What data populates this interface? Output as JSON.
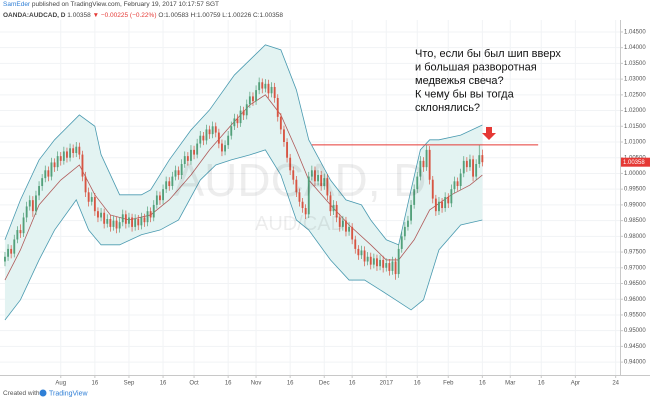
{
  "header": {
    "publisher": "SamEder",
    "published": "published on TradingView.com, February 19, 2017 10:17:57 SGT",
    "symbol": "OANDA:AUDCAD, D",
    "last": "1.00358",
    "change": "▼ −0.00225 (−0.22%)",
    "ohlc": "O:1.00583 H:1.00759 L:1.00226 C:1.00358"
  },
  "footer": {
    "created": "Created with",
    "brand": "TradingView"
  },
  "chart_data": {
    "type": "candlestick",
    "watermark_title": "AUDCAD, D",
    "watermark_subtitle": "AUD/CAD",
    "annotation": [
      "Что, если бы был шип вверх",
      "и большая разворотная",
      "медвежья свеча?",
      "К чему бы вы тогда",
      "склонялись?"
    ],
    "up_color": "#53a07a",
    "down_color": "#d75442",
    "grid": true,
    "xlim": [
      -1.6,
      198.4
    ],
    "ylim": [
      0.9359,
      1.0488
    ],
    "xticks": [
      {
        "value": 18,
        "label": "Aug"
      },
      {
        "value": 29,
        "label": "16"
      },
      {
        "value": 40,
        "label": "Sep"
      },
      {
        "value": 51,
        "label": "16"
      },
      {
        "value": 61,
        "label": "Oct"
      },
      {
        "value": 72,
        "label": "16"
      },
      {
        "value": 81,
        "label": "Nov"
      },
      {
        "value": 92,
        "label": "16"
      },
      {
        "value": 103,
        "label": "Dec"
      },
      {
        "value": 112,
        "label": "16"
      },
      {
        "value": 123,
        "label": "2017"
      },
      {
        "value": 133,
        "label": "16"
      },
      {
        "value": 143,
        "label": "Feb"
      },
      {
        "value": 154,
        "label": "16"
      },
      {
        "value": 163,
        "label": "Mar"
      },
      {
        "value": 173,
        "label": "16"
      },
      {
        "value": 184,
        "label": "Apr"
      },
      {
        "value": 197,
        "label": "24"
      }
    ],
    "yticks": [
      {
        "value": 1.045,
        "label": "1.04500"
      },
      {
        "value": 1.04,
        "label": "1.04000"
      },
      {
        "value": 1.035,
        "label": "1.03500"
      },
      {
        "value": 1.03,
        "label": "1.03000"
      },
      {
        "value": 1.025,
        "label": "1.02500"
      },
      {
        "value": 1.02,
        "label": "1.02000"
      },
      {
        "value": 1.015,
        "label": "1.01500"
      },
      {
        "value": 1.01,
        "label": "1.01000"
      },
      {
        "value": 1.005,
        "label": "1.00500"
      },
      {
        "value": 1,
        "label": "1.00000"
      },
      {
        "value": 0.995,
        "label": "0.99500"
      },
      {
        "value": 0.99,
        "label": "0.99000"
      },
      {
        "value": 0.985,
        "label": "0.98500"
      },
      {
        "value": 0.98,
        "label": "0.98000"
      },
      {
        "value": 0.975,
        "label": "0.97500"
      },
      {
        "value": 0.97,
        "label": "0.97000"
      },
      {
        "value": 0.965,
        "label": "0.96500"
      },
      {
        "value": 0.96,
        "label": "0.96000"
      },
      {
        "value": 0.955,
        "label": "0.95500"
      },
      {
        "value": 0.95,
        "label": "0.95000"
      },
      {
        "value": 0.945,
        "label": "0.94500"
      },
      {
        "value": 0.94,
        "label": "0.94000"
      }
    ],
    "last_price": 1.00358,
    "last_color": "#e53935",
    "hline": {
      "y": 1.0091,
      "x": [
        99,
        172
      ],
      "color": "#e53935"
    },
    "bands": {
      "fill": "#e3f3f2",
      "upper": {
        "color": "#4a9ab0",
        "x": [
          0,
          5,
          11,
          16,
          24,
          29,
          31,
          37,
          44,
          47,
          53,
          60,
          66,
          74,
          79,
          84,
          89,
          94,
          98,
          105,
          110,
          115,
          118,
          123,
          127,
          131,
          134,
          137,
          140,
          147,
          154
        ],
        "values": [
          0.9789,
          0.9916,
          1.0043,
          1.0107,
          1.0186,
          1.015,
          1.006,
          0.9932,
          0.9932,
          0.9948,
          1.0043,
          1.0138,
          1.0202,
          1.0313,
          1.0361,
          1.0409,
          1.0393,
          1.0266,
          1.0107,
          0.9979,
          0.9916,
          0.99,
          0.9852,
          0.9789,
          0.9773,
          0.9948,
          1.0075,
          1.0107,
          1.0107,
          1.0122,
          1.0154
        ]
      },
      "middle": {
        "color": "#b05a5a",
        "x": [
          0,
          5,
          11,
          18,
          24,
          29,
          34,
          40,
          47,
          53,
          60,
          66,
          73,
          79,
          84,
          89,
          94,
          98,
          105,
          111,
          118,
          123,
          127,
          132,
          137,
          144,
          150,
          154
        ],
        "values": [
          0.9661,
          0.9757,
          0.99,
          0.9979,
          1.0027,
          0.9932,
          0.9868,
          0.9852,
          0.9868,
          0.9916,
          0.9995,
          1.0075,
          1.0154,
          1.0218,
          1.025,
          1.0186,
          1.0075,
          0.9979,
          0.99,
          0.9836,
          0.9773,
          0.9725,
          0.9725,
          0.9789,
          0.9884,
          0.9932,
          0.9963,
          0.9995
        ]
      },
      "lower": {
        "color": "#4a9ab0",
        "x": [
          0,
          5,
          11,
          16,
          23,
          27,
          31,
          37,
          44,
          50,
          56,
          63,
          68,
          73,
          79,
          84,
          89,
          94,
          98,
          105,
          111,
          116,
          121,
          126,
          131,
          135,
          140,
          147,
          154
        ],
        "values": [
          0.9534,
          0.9598,
          0.9725,
          0.982,
          0.9916,
          0.982,
          0.9773,
          0.9773,
          0.9805,
          0.982,
          0.9852,
          0.9979,
          1.0027,
          1.0043,
          1.0059,
          1.0075,
          0.9995,
          0.9852,
          0.982,
          0.9725,
          0.9661,
          0.9661,
          0.963,
          0.9598,
          0.9566,
          0.9598,
          0.9757,
          0.9836,
          0.9852
        ]
      }
    },
    "ohlc": [
      [
        0.972,
        0.975,
        0.9705,
        0.9735
      ],
      [
        0.9735,
        0.9775,
        0.9722,
        0.976
      ],
      [
        0.976,
        0.9772,
        0.973,
        0.9745
      ],
      [
        0.9745,
        0.9805,
        0.9733,
        0.979
      ],
      [
        0.979,
        0.9832,
        0.9778,
        0.982
      ],
      [
        0.982,
        0.9838,
        0.9795,
        0.981
      ],
      [
        0.981,
        0.9875,
        0.9798,
        0.986
      ],
      [
        0.986,
        0.991,
        0.9845,
        0.9895
      ],
      [
        0.9895,
        0.993,
        0.9882,
        0.9915
      ],
      [
        0.9915,
        0.9928,
        0.9862,
        0.988
      ],
      [
        0.988,
        0.9945,
        0.9868,
        0.993
      ],
      [
        0.993,
        0.9975,
        0.9915,
        0.996
      ],
      [
        0.996,
        0.9998,
        0.9945,
        0.9985
      ],
      [
        0.9985,
        1.0025,
        0.9972,
        1.001
      ],
      [
        1.001,
        1.0022,
        0.9975,
        0.999
      ],
      [
        0.999,
        1.005,
        0.9978,
        1.0035
      ],
      [
        1.0035,
        1.0048,
        1.0005,
        1.002
      ],
      [
        1.002,
        1.007,
        1.0008,
        1.0055
      ],
      [
        1.0055,
        1.0068,
        1.0025,
        1.004
      ],
      [
        1.004,
        1.0085,
        1.0028,
        1.007
      ],
      [
        1.007,
        1.0082,
        1.0035,
        1.005
      ],
      [
        1.005,
        1.0095,
        1.0038,
        1.008
      ],
      [
        1.008,
        1.0092,
        1.005,
        1.0065
      ],
      [
        1.0065,
        1.01,
        1.0052,
        1.0085
      ],
      [
        1.0085,
        1.0098,
        1.0045,
        1.006
      ],
      [
        1.006,
        1.0072,
        0.9975,
        0.999
      ],
      [
        0.999,
        1.0005,
        0.9925,
        0.994
      ],
      [
        0.994,
        0.9955,
        0.9895,
        0.991
      ],
      [
        0.991,
        0.994,
        0.9898,
        0.9925
      ],
      [
        0.9925,
        0.9938,
        0.9865,
        0.988
      ],
      [
        0.988,
        0.9892,
        0.9845,
        0.986
      ],
      [
        0.986,
        0.989,
        0.9848,
        0.9875
      ],
      [
        0.9875,
        0.9888,
        0.9825,
        0.984
      ],
      [
        0.984,
        0.987,
        0.9828,
        0.9855
      ],
      [
        0.9855,
        0.9868,
        0.9815,
        0.983
      ],
      [
        0.983,
        0.9865,
        0.9818,
        0.985
      ],
      [
        0.985,
        0.9862,
        0.981,
        0.9825
      ],
      [
        0.9825,
        0.986,
        0.9812,
        0.9845
      ],
      [
        0.9845,
        0.9885,
        0.9832,
        0.987
      ],
      [
        0.987,
        0.9882,
        0.9825,
        0.984
      ],
      [
        0.984,
        0.9875,
        0.9828,
        0.986
      ],
      [
        0.986,
        0.9872,
        0.9815,
        0.983
      ],
      [
        0.983,
        0.987,
        0.9818,
        0.9855
      ],
      [
        0.9855,
        0.9868,
        0.982,
        0.9835
      ],
      [
        0.9835,
        0.9875,
        0.9822,
        0.986
      ],
      [
        0.986,
        0.9872,
        0.983,
        0.9845
      ],
      [
        0.9845,
        0.9895,
        0.9832,
        0.988
      ],
      [
        0.988,
        0.9892,
        0.9845,
        0.986
      ],
      [
        0.986,
        0.9915,
        0.9848,
        0.99
      ],
      [
        0.99,
        0.9945,
        0.9888,
        0.993
      ],
      [
        0.993,
        0.9942,
        0.99,
        0.9915
      ],
      [
        0.9915,
        0.9965,
        0.9902,
        0.995
      ],
      [
        0.995,
        0.999,
        0.9938,
        0.9975
      ],
      [
        0.9975,
        0.9988,
        0.9945,
        0.996
      ],
      [
        0.996,
        1.0005,
        0.9948,
        0.999
      ],
      [
        0.999,
        1.0025,
        0.9978,
        1.001
      ],
      [
        1.001,
        1.0022,
        0.998,
        0.9995
      ],
      [
        0.9995,
        1.0045,
        0.9982,
        1.003
      ],
      [
        1.003,
        1.007,
        1.0018,
        1.0055
      ],
      [
        1.0055,
        1.0068,
        1.0025,
        1.004
      ],
      [
        1.004,
        1.009,
        1.0028,
        1.0075
      ],
      [
        1.0075,
        1.0088,
        1.0045,
        1.006
      ],
      [
        1.006,
        1.011,
        1.0048,
        1.0095
      ],
      [
        1.0095,
        1.0135,
        1.0082,
        1.012
      ],
      [
        1.012,
        1.0132,
        1.009,
        1.0105
      ],
      [
        1.0105,
        1.0155,
        1.0092,
        1.014
      ],
      [
        1.014,
        1.0152,
        1.011,
        1.0125
      ],
      [
        1.0125,
        1.0165,
        1.0112,
        1.015
      ],
      [
        1.015,
        1.0162,
        1.0115,
        1.013
      ],
      [
        1.013,
        1.0142,
        1.008,
        1.0095
      ],
      [
        1.0095,
        1.0108,
        1.0055,
        1.007
      ],
      [
        1.007,
        1.0105,
        1.0058,
        1.009
      ],
      [
        1.009,
        1.0135,
        1.0078,
        1.012
      ],
      [
        1.012,
        1.0165,
        1.0108,
        1.015
      ],
      [
        1.015,
        1.019,
        1.0138,
        1.0175
      ],
      [
        1.0175,
        1.0188,
        1.0145,
        1.016
      ],
      [
        1.016,
        1.0215,
        1.0148,
        1.02
      ],
      [
        1.02,
        1.0212,
        1.017,
        1.0185
      ],
      [
        1.0185,
        1.0235,
        1.0172,
        1.022
      ],
      [
        1.022,
        1.026,
        1.0208,
        1.0245
      ],
      [
        1.0245,
        1.0258,
        1.0215,
        1.023
      ],
      [
        1.023,
        1.028,
        1.0218,
        1.0265
      ],
      [
        1.0265,
        1.0305,
        1.0252,
        1.029
      ],
      [
        1.029,
        1.0302,
        1.0255,
        1.027
      ],
      [
        1.027,
        1.03,
        1.0258,
        1.0285
      ],
      [
        1.0285,
        1.0298,
        1.024,
        1.0255
      ],
      [
        1.0255,
        1.029,
        1.0242,
        1.0275
      ],
      [
        1.0275,
        1.0288,
        1.0225,
        1.024
      ],
      [
        1.024,
        1.0252,
        1.0165,
        1.018
      ],
      [
        1.018,
        1.0192,
        1.0125,
        1.014
      ],
      [
        1.014,
        1.0152,
        1.0085,
        1.01
      ],
      [
        1.01,
        1.0112,
        1.0035,
        1.005
      ],
      [
        1.005,
        1.0062,
        0.9995,
        1.001
      ],
      [
        1.001,
        1.0022,
        0.9965,
        0.998
      ],
      [
        0.998,
        0.9992,
        0.9925,
        0.994
      ],
      [
        0.994,
        0.9952,
        0.9895,
        0.991
      ],
      [
        0.991,
        0.9922,
        0.9875,
        0.989
      ],
      [
        0.989,
        0.9902,
        0.9855,
        0.987
      ],
      [
        0.987,
        1.0005,
        0.9858,
        0.999
      ],
      [
        0.999,
        1.0025,
        0.9978,
        1.001
      ],
      [
        1.001,
        1.0022,
        0.996,
        0.9975
      ],
      [
        0.9975,
        1.001,
        0.9962,
        0.9995
      ],
      [
        0.9995,
        1.0008,
        0.9945,
        0.996
      ],
      [
        0.996,
        1.0,
        0.9948,
        0.9985
      ],
      [
        0.9985,
        0.9998,
        0.9915,
        0.993
      ],
      [
        0.993,
        0.9942,
        0.9865,
        0.988
      ],
      [
        0.988,
        0.9915,
        0.9868,
        0.99
      ],
      [
        0.99,
        0.9912,
        0.9845,
        0.986
      ],
      [
        0.986,
        0.9872,
        0.9815,
        0.983
      ],
      [
        0.983,
        0.9865,
        0.9818,
        0.985
      ],
      [
        0.985,
        0.9862,
        0.98,
        0.9815
      ],
      [
        0.9815,
        0.9845,
        0.9802,
        0.983
      ],
      [
        0.983,
        0.9842,
        0.9775,
        0.979
      ],
      [
        0.979,
        0.9802,
        0.9745,
        0.976
      ],
      [
        0.976,
        0.9772,
        0.9725,
        0.974
      ],
      [
        0.974,
        0.977,
        0.9728,
        0.9755
      ],
      [
        0.9755,
        0.9768,
        0.9705,
        0.972
      ],
      [
        0.972,
        0.975,
        0.9708,
        0.9735
      ],
      [
        0.9735,
        0.9748,
        0.9695,
        0.971
      ],
      [
        0.971,
        0.9745,
        0.9698,
        0.973
      ],
      [
        0.973,
        0.9742,
        0.969,
        0.9705
      ],
      [
        0.9705,
        0.974,
        0.9692,
        0.9725
      ],
      [
        0.9725,
        0.9738,
        0.9685,
        0.97
      ],
      [
        0.97,
        0.973,
        0.9688,
        0.9715
      ],
      [
        0.9715,
        0.9728,
        0.9675,
        0.969
      ],
      [
        0.969,
        0.9735,
        0.9678,
        0.972
      ],
      [
        0.972,
        0.9732,
        0.9662,
        0.968
      ],
      [
        0.968,
        0.9775,
        0.9668,
        0.976
      ],
      [
        0.976,
        0.9815,
        0.9748,
        0.98
      ],
      [
        0.98,
        0.9845,
        0.9788,
        0.983
      ],
      [
        0.983,
        0.9865,
        0.9818,
        0.985
      ],
      [
        0.985,
        0.9915,
        0.9838,
        0.99
      ],
      [
        0.99,
        0.9965,
        0.9888,
        0.995
      ],
      [
        0.995,
        1.0005,
        0.9938,
        0.999
      ],
      [
        0.999,
        1.0055,
        0.9978,
        1.004
      ],
      [
        1.004,
        1.0052,
        1.0005,
        1.002
      ],
      [
        1.002,
        1.009,
        1.0008,
        1.0075
      ],
      [
        1.0075,
        1.0087,
        0.9965,
        0.998
      ],
      [
        0.998,
        0.9992,
        0.9905,
        0.992
      ],
      [
        0.992,
        0.9932,
        0.9865,
        0.988
      ],
      [
        0.988,
        0.9925,
        0.9868,
        0.991
      ],
      [
        0.991,
        0.9922,
        0.9875,
        0.989
      ],
      [
        0.989,
        0.994,
        0.9878,
        0.9925
      ],
      [
        0.9925,
        0.9937,
        0.989,
        0.9905
      ],
      [
        0.9905,
        0.9965,
        0.9893,
        0.995
      ],
      [
        0.995,
        0.999,
        0.9938,
        0.9975
      ],
      [
        0.9975,
        0.9987,
        0.9945,
        0.996
      ],
      [
        0.996,
        1.0015,
        0.9948,
        1.0
      ],
      [
        1.0,
        1.0055,
        0.9988,
        1.004
      ],
      [
        1.004,
        1.0052,
        1.0005,
        1.002
      ],
      [
        1.002,
        1.006,
        1.0008,
        1.0045
      ],
      [
        1.0045,
        1.0057,
        0.9975,
        0.999
      ],
      [
        0.999,
        1.0045,
        0.9978,
        1.003
      ],
      [
        1.003,
        1.009,
        1.0018,
        1.0058
      ],
      [
        1.00583,
        1.00759,
        1.00226,
        1.00358
      ]
    ]
  }
}
